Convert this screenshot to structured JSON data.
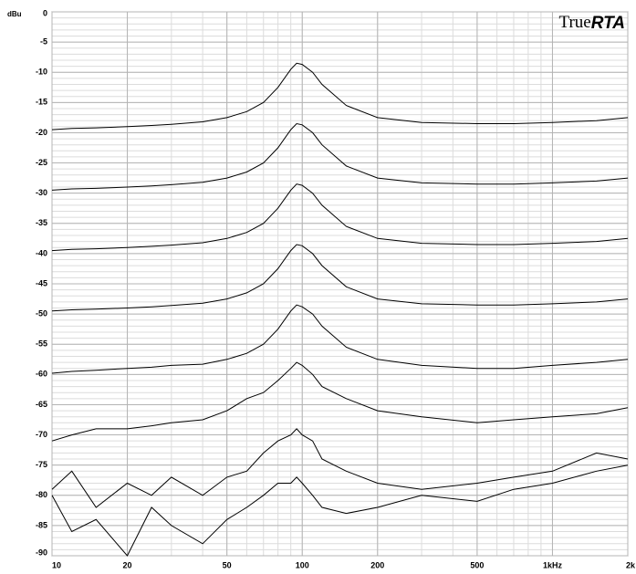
{
  "chart_data": {
    "type": "line",
    "ylabel": "dBu",
    "logo_text": "True",
    "logo_emphasis": "RTA",
    "xscale": "log",
    "grid": true,
    "xlim": [
      10,
      2000
    ],
    "ylim": [
      -90,
      0
    ],
    "xticks": [
      10,
      20,
      50,
      100,
      200,
      500,
      {
        "value": 1000,
        "label": "1kHz"
      },
      {
        "value": 2000,
        "label": "2k"
      }
    ],
    "yticks": [
      0,
      -5,
      -10,
      -15,
      -20,
      -25,
      -30,
      -35,
      -40,
      -45,
      -50,
      -55,
      -60,
      -65,
      -70,
      -75,
      -80,
      -85,
      -90
    ],
    "x": [
      10,
      12,
      15,
      20,
      25,
      30,
      40,
      50,
      60,
      70,
      80,
      90,
      95,
      100,
      110,
      120,
      150,
      200,
      300,
      500,
      700,
      1000,
      1500,
      2000
    ],
    "series": [
      {
        "color": "#000000",
        "values": [
          -19.5,
          -19.3,
          -19.2,
          -19,
          -18.8,
          -18.6,
          -18.2,
          -17.5,
          -16.5,
          -15,
          -12.5,
          -9.5,
          -8.5,
          -8.7,
          -10,
          -12,
          -15.5,
          -17.5,
          -18.3,
          -18.5,
          -18.5,
          -18.3,
          -18,
          -17.5
        ]
      },
      {
        "color": "#000000",
        "values": [
          -29.5,
          -29.3,
          -29.2,
          -29,
          -28.8,
          -28.6,
          -28.2,
          -27.5,
          -26.5,
          -25,
          -22.5,
          -19.5,
          -18.5,
          -18.7,
          -20,
          -22,
          -25.5,
          -27.5,
          -28.3,
          -28.5,
          -28.5,
          -28.3,
          -28,
          -27.5
        ]
      },
      {
        "color": "#000000",
        "values": [
          -39.5,
          -39.3,
          -39.2,
          -39,
          -38.8,
          -38.6,
          -38.2,
          -37.5,
          -36.5,
          -35,
          -32.5,
          -29.5,
          -28.5,
          -28.7,
          -30,
          -32,
          -35.5,
          -37.5,
          -38.3,
          -38.5,
          -38.5,
          -38.3,
          -38,
          -37.5
        ]
      },
      {
        "color": "#000000",
        "values": [
          -49.5,
          -49.3,
          -49.2,
          -49,
          -48.8,
          -48.6,
          -48.2,
          -47.5,
          -46.5,
          -45,
          -42.5,
          -39.5,
          -38.5,
          -38.7,
          -40,
          -42,
          -45.5,
          -47.5,
          -48.3,
          -48.5,
          -48.5,
          -48.3,
          -48,
          -47.5
        ]
      },
      {
        "color": "#000000",
        "values": [
          -59.8,
          -59.5,
          -59.3,
          -59,
          -58.8,
          -58.5,
          -58.3,
          -57.5,
          -56.5,
          -55,
          -52.5,
          -49.5,
          -48.5,
          -48.8,
          -50,
          -52,
          -55.5,
          -57.5,
          -58.5,
          -59,
          -59,
          -58.5,
          -58,
          -57.5
        ]
      },
      {
        "color": "#000000",
        "values": [
          -71,
          -70,
          -69,
          -69,
          -68.5,
          -68,
          -67.5,
          -66,
          -64,
          -63,
          -61,
          -59,
          -58,
          -58.5,
          -60,
          -62,
          -64,
          -66,
          -67,
          -68,
          -67.5,
          -67,
          -66.5,
          -65.5
        ]
      },
      {
        "color": "#000000",
        "values": [
          -79,
          -76,
          -82,
          -78,
          -80,
          -77,
          -80,
          -77,
          -76,
          -73,
          -71,
          -70,
          -69,
          -70,
          -71,
          -74,
          -76,
          -78,
          -79,
          -78,
          -77,
          -76,
          -73,
          -74
        ]
      },
      {
        "color": "#000000",
        "values": [
          -80,
          -86,
          -84,
          -90,
          -82,
          -85,
          -88,
          -84,
          -82,
          -80,
          -78,
          -78,
          -77,
          -78,
          -80,
          -82,
          -83,
          -82,
          -80,
          -81,
          -79,
          -78,
          -76,
          -75
        ]
      }
    ]
  }
}
